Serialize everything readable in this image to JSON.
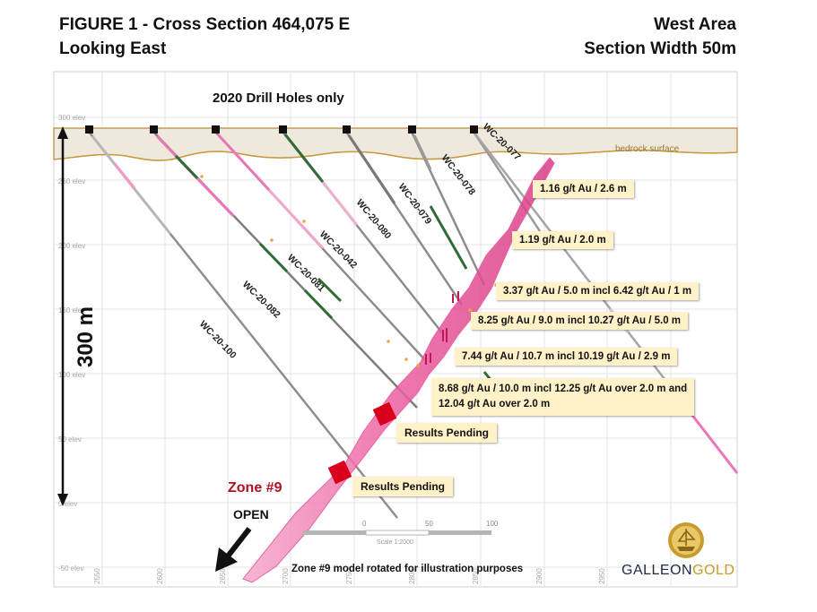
{
  "title": {
    "line1": "FIGURE 1 - Cross Section 464,075 E",
    "line2": "Looking East",
    "area": "West Area",
    "width": "Section Width 50m"
  },
  "caption": "2020 Drill Holes only",
  "surface_label": "bedrock surface",
  "elevation_labels": [
    "300 elev",
    "250 elev",
    "200 elev",
    "150 elev",
    "100 elev",
    "50 elev",
    "0 elev",
    "-50 elev"
  ],
  "northing_labels": [
    "2550",
    "2600",
    "2650",
    "2700",
    "2750",
    "2800",
    "2850",
    "2900",
    "2950"
  ],
  "drill_holes": [
    "WC-20-077",
    "WC-20-078",
    "WC-20-079",
    "WC-20-080",
    "WC-20-042",
    "WC-20-081",
    "WC-20-082",
    "WC-20-100"
  ],
  "intercepts": [
    "1.16 g/t Au / 2.6  m",
    "1.19 g/t Au / 2.0  m",
    "3.37 g/t Au / 5.0 m incl 6.42 g/t Au / 1 m",
    "8.25 g/t Au / 9.0 m incl 10.27 g/t Au / 5.0 m",
    "7.44 g/t Au / 10.7 m incl 10.19 g/t Au / 2.9 m",
    "8.68 g/t Au / 10.0 m incl 12.25 g/t Au over 2.0 m and",
    "12.04 g/t Au over 2.0 m"
  ],
  "pending": [
    "Results Pending",
    "Results Pending"
  ],
  "zone": "Zone #9",
  "open": "OPEN",
  "depth_scale": "300 m",
  "scale_bar": {
    "ticks": [
      "0",
      "50",
      "100"
    ],
    "label": "Scale 1:2000"
  },
  "footnote": "Zone #9 model rotated for illustration purposes",
  "logo": {
    "word1": "GALLEON",
    "word2": "GOLD"
  },
  "colors": {
    "zone": "#e8559a",
    "pending_box": "#d8001a",
    "callout_bg": "#fff1c8",
    "zone_label": "#b01020"
  }
}
